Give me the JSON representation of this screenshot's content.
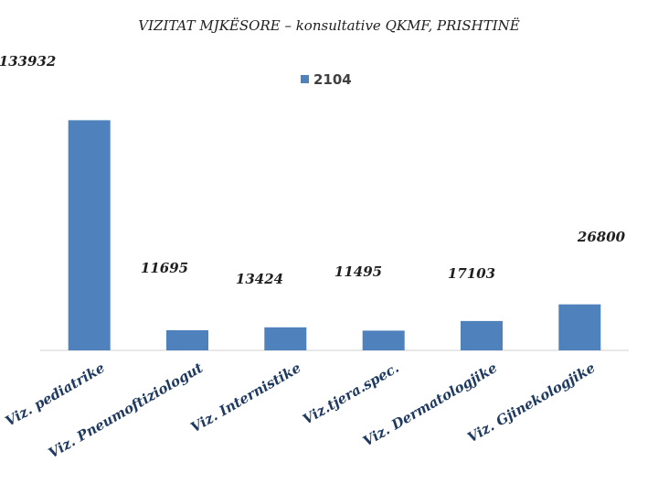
{
  "chart_data": {
    "type": "bar",
    "title": "VIZITAT MJKËSORE – konsultative  QKMF, PRISHTINË",
    "categories": [
      "Viz. pediatrike",
      "Viz. Pneumoftiziologut",
      "Viz. Internistike",
      "Viz.tjera.spec.",
      "Viz. Dermatologjike",
      "Viz. Gjinekologjike"
    ],
    "series": [
      {
        "name": "2104",
        "color": "#4f81bd",
        "values": [
          133932,
          11695,
          13424,
          11495,
          17103,
          26800
        ],
        "labels": [
          "133932",
          "11695",
          "13424",
          "11495",
          "17103",
          "26800"
        ]
      }
    ],
    "ylim": [
      0,
      140000
    ],
    "grid": false,
    "legend": "top-center",
    "xlabel": "",
    "ylabel": ""
  }
}
